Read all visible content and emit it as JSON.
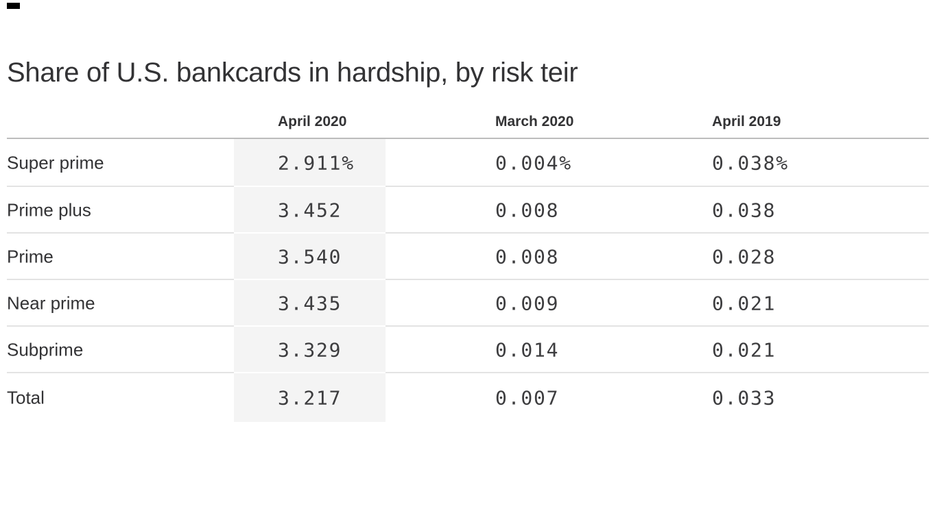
{
  "title": "Share of U.S. bankcards in hardship, by risk teir",
  "brand": {
    "mark_color": "#000000"
  },
  "table": {
    "columns": [
      "April 2020",
      "March 2020",
      "April 2019"
    ],
    "rows": [
      {
        "label": "Super prime",
        "values": [
          "2.911%",
          "0.004%",
          "0.038%"
        ]
      },
      {
        "label": "Prime plus",
        "values": [
          "3.452",
          "0.008",
          "0.038"
        ]
      },
      {
        "label": "Prime",
        "values": [
          "3.540",
          "0.008",
          "0.028"
        ]
      },
      {
        "label": "Near prime",
        "values": [
          "3.435",
          "0.009",
          "0.021"
        ]
      },
      {
        "label": "Subprime",
        "values": [
          "3.329",
          "0.014",
          "0.021"
        ]
      },
      {
        "label": "Total",
        "values": [
          "3.217",
          "0.007",
          "0.033"
        ]
      }
    ],
    "highlighted_column": "April 2020",
    "colors": {
      "highlight_bg": "#f4f4f4",
      "header_rule": "#bcbcbc",
      "row_rule": "#e3e3e3",
      "heading_text": "#333335",
      "value_text": "#3d3d3f"
    }
  },
  "chart_data": {
    "type": "table",
    "title": "Share of U.S. bankcards in hardship, by risk teir",
    "categories": [
      "Super prime",
      "Prime plus",
      "Prime",
      "Near prime",
      "Subprime",
      "Total"
    ],
    "series": [
      {
        "name": "April 2020",
        "values": [
          2.911,
          3.452,
          3.54,
          3.435,
          3.329,
          3.217
        ]
      },
      {
        "name": "March 2020",
        "values": [
          0.004,
          0.008,
          0.008,
          0.009,
          0.014,
          0.007
        ]
      },
      {
        "name": "April 2019",
        "values": [
          0.038,
          0.038,
          0.028,
          0.021,
          0.021,
          0.033
        ]
      }
    ],
    "unit": "%",
    "highlighted_series": "April 2020",
    "layout": "row labels left, one monospace value column per period, first value column shaded"
  }
}
